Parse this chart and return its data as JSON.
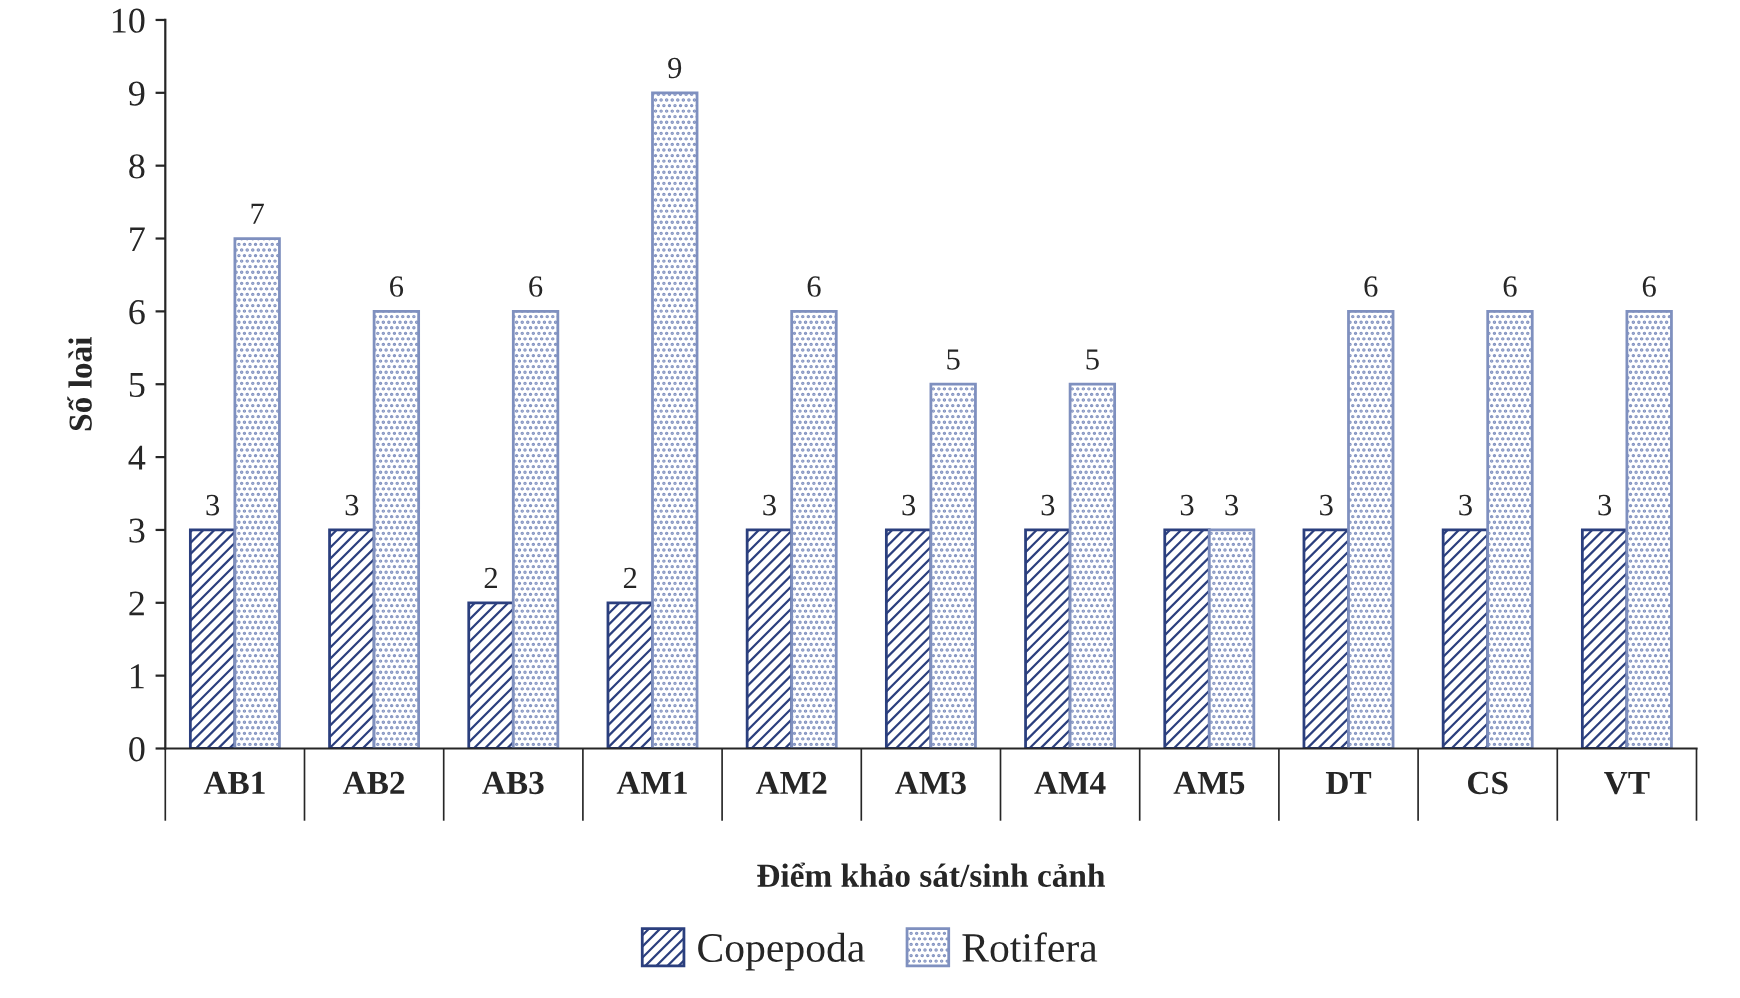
{
  "chart_data": {
    "type": "bar",
    "xlabel": "Điểm khảo sát/sinh cảnh",
    "ylabel": "Số loài",
    "categories": [
      "AB1",
      "AB2",
      "AB3",
      "AM1",
      "AM2",
      "AM3",
      "AM4",
      "AM5",
      "DT",
      "CS",
      "VT"
    ],
    "series": [
      {
        "name": "Copepoda",
        "color": "#2b3f7e",
        "values": [
          3,
          3,
          2,
          2,
          3,
          3,
          3,
          3,
          3,
          3,
          3
        ]
      },
      {
        "name": "Rotifera",
        "color": "#7f90bf",
        "values": [
          7,
          6,
          6,
          9,
          6,
          5,
          5,
          3,
          6,
          6,
          6
        ]
      }
    ],
    "ylim": [
      0,
      10
    ],
    "yticks": [
      0,
      1,
      2,
      3,
      4,
      5,
      6,
      7,
      8,
      9,
      10
    ],
    "data_labels": true,
    "grid": false,
    "legend": "bottom"
  }
}
